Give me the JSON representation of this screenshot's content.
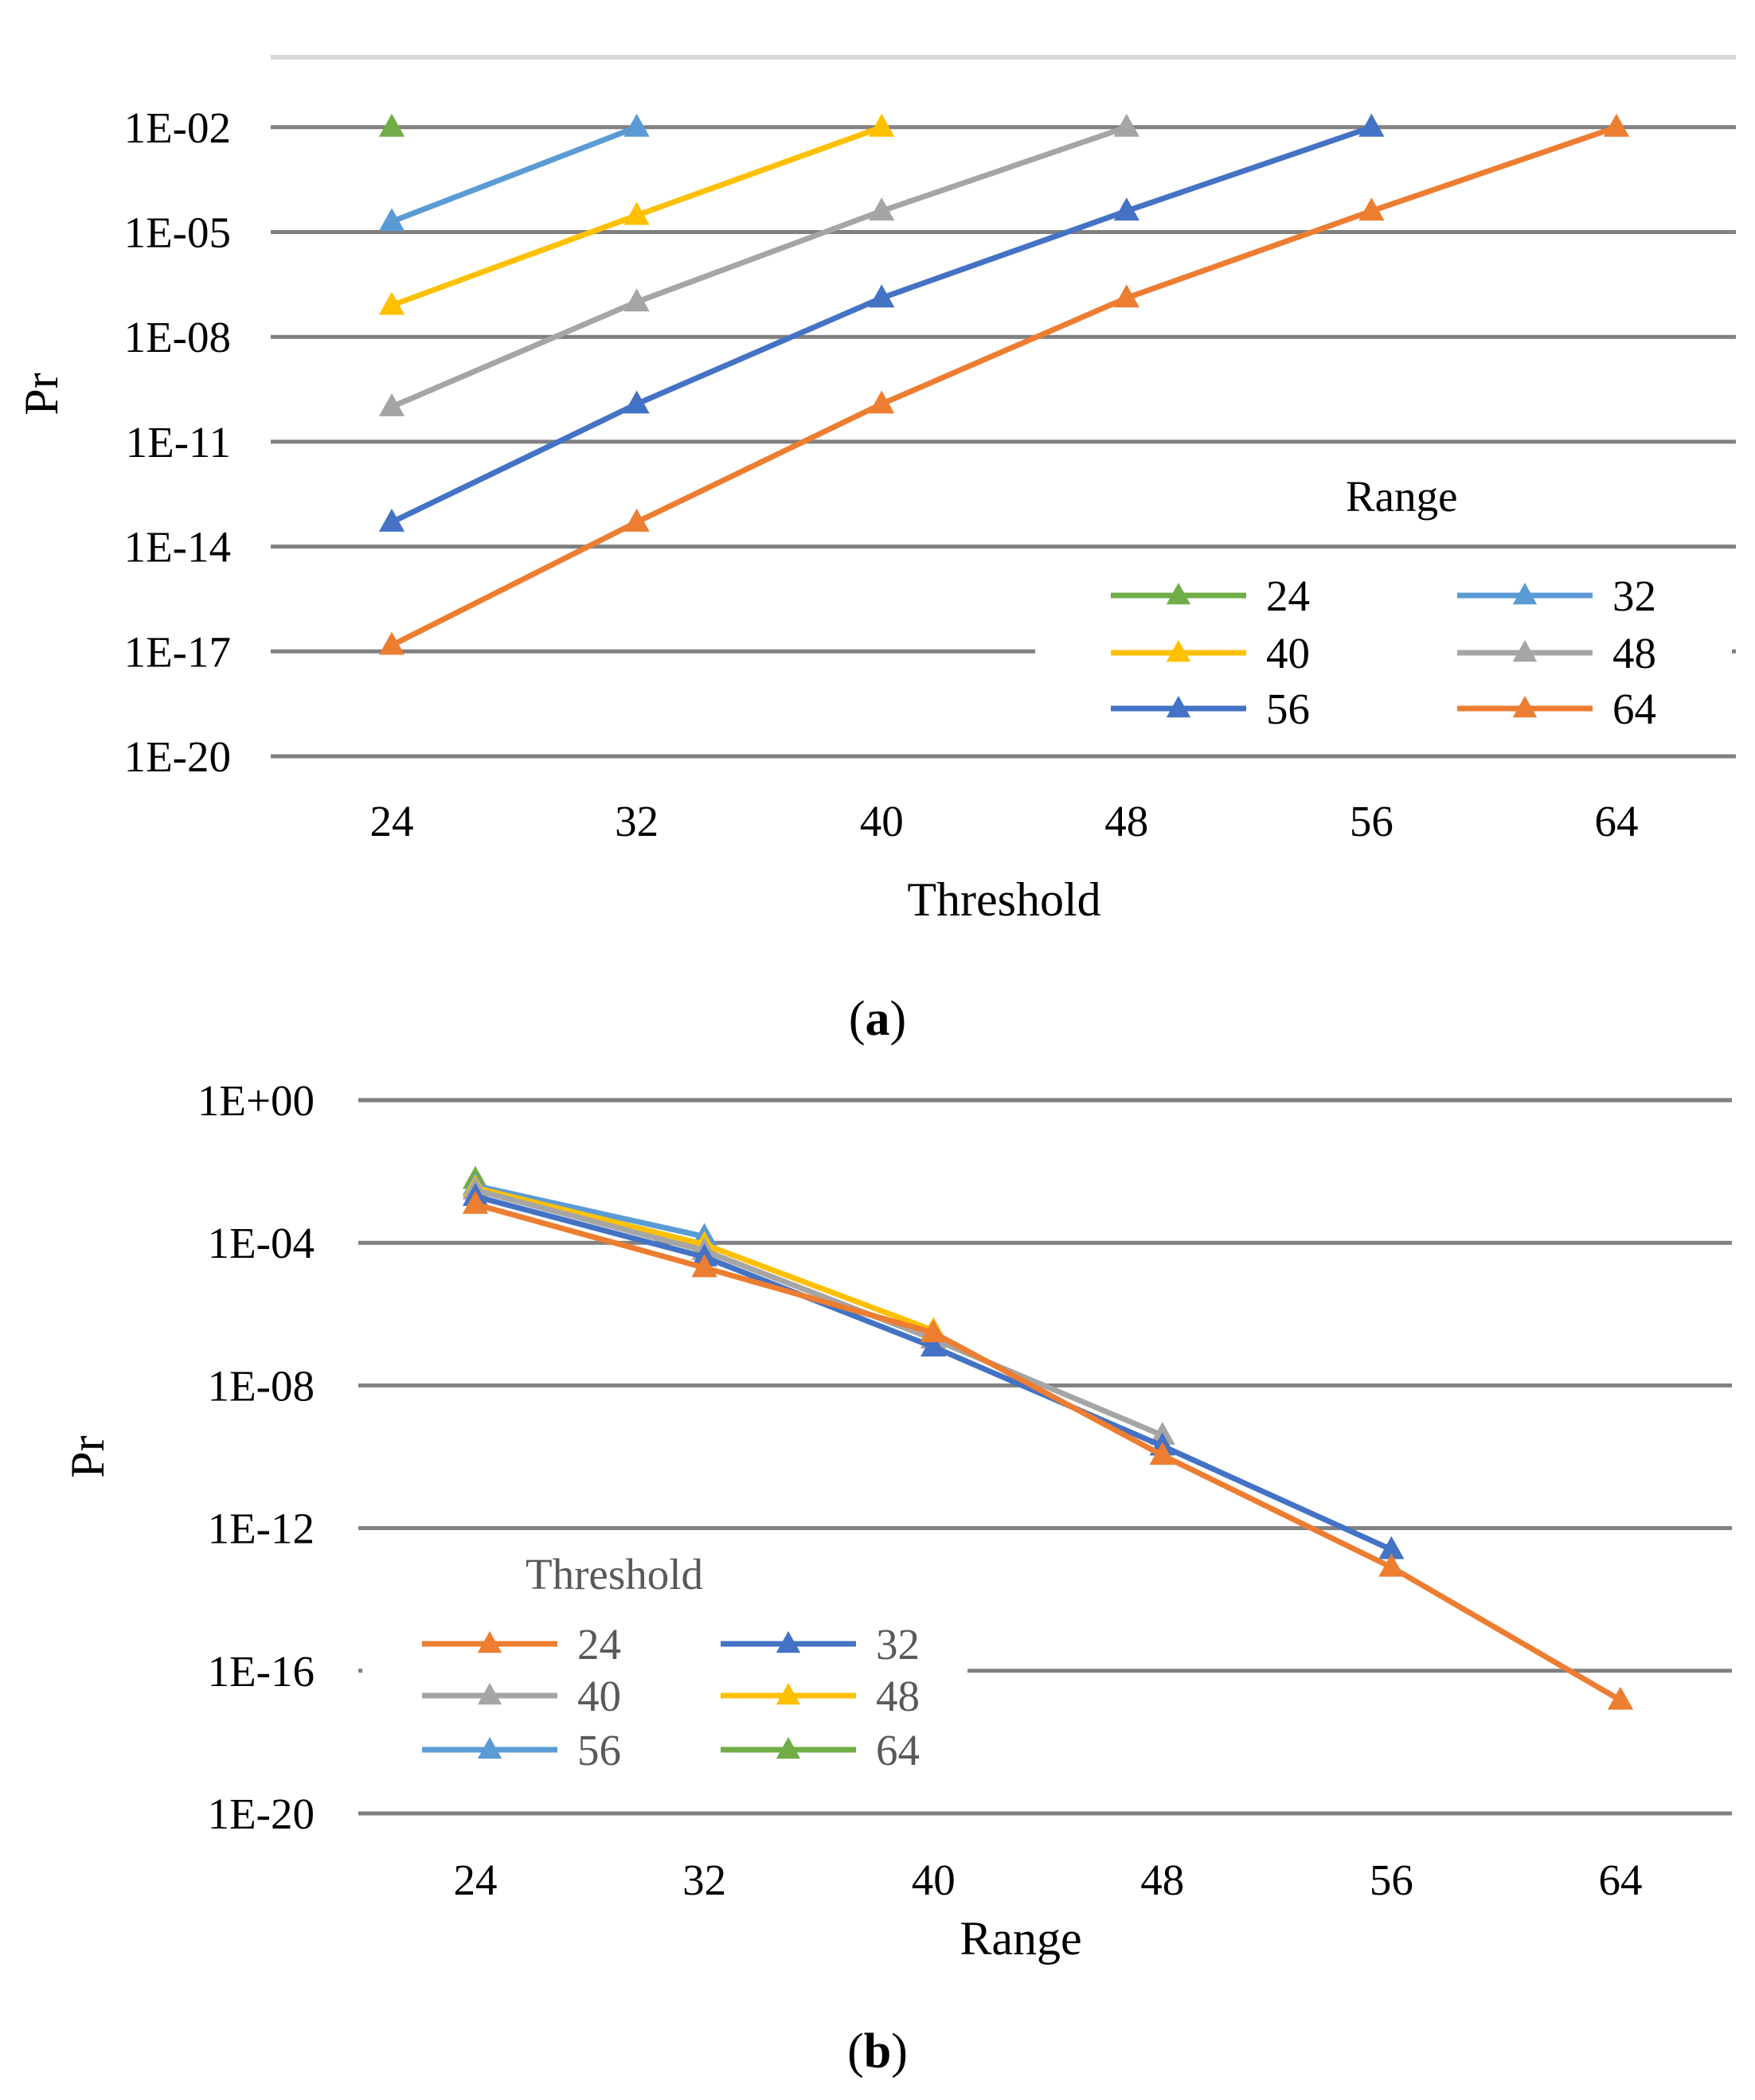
{
  "chart_data": [
    {
      "type": "line",
      "panel_label": "a",
      "xlabel": "Threshold",
      "ylabel": "Pr",
      "categories": [
        "24",
        "32",
        "40",
        "48",
        "56",
        "64"
      ],
      "y_scale": "log",
      "ylim": [
        1e-20,
        1
      ],
      "y_ticks": [
        "1E-20",
        "1E-17",
        "1E-14",
        "1E-11",
        "1E-08",
        "1E-05",
        "1E-02"
      ],
      "grid": true,
      "legend": {
        "title": "Range",
        "placement": "bottom-right",
        "columns": 2
      },
      "marker": "triangle",
      "series": [
        {
          "name": "24",
          "color": "#70AD47",
          "values": [
            0.01,
            null,
            null,
            null,
            null,
            null
          ]
        },
        {
          "name": "32",
          "color": "#5B9BD5",
          "values": [
            2e-05,
            0.01,
            null,
            null,
            null,
            null
          ]
        },
        {
          "name": "40",
          "color": "#FFC000",
          "values": [
            8e-08,
            3e-05,
            0.01,
            null,
            null,
            null
          ]
        },
        {
          "name": "48",
          "color": "#A5A5A5",
          "values": [
            1e-10,
            1e-07,
            4e-05,
            0.01,
            null,
            null
          ]
        },
        {
          "name": "56",
          "color": "#4472C4",
          "values": [
            5e-14,
            1.2e-10,
            1.3e-07,
            4e-05,
            0.01,
            null
          ]
        },
        {
          "name": "64",
          "color": "#ED7D31",
          "values": [
            1.5e-17,
            5e-14,
            1.2e-10,
            1.3e-07,
            4e-05,
            0.01
          ]
        }
      ]
    },
    {
      "type": "line",
      "panel_label": "b",
      "xlabel": "Range",
      "ylabel": "Pr",
      "categories": [
        "24",
        "32",
        "40",
        "48",
        "56",
        "64"
      ],
      "y_scale": "log",
      "ylim": [
        1e-20,
        1
      ],
      "y_ticks": [
        "1E-20",
        "1E-16",
        "1E-12",
        "1E-08",
        "1E-04",
        "1E+00"
      ],
      "grid": true,
      "legend": {
        "title": "Threshold",
        "placement": "bottom-left",
        "columns": 2
      },
      "marker": "triangle",
      "series": [
        {
          "name": "24",
          "color": "#ED7D31",
          "values": [
            0.0012,
            2e-05,
            3e-07,
            1.1e-10,
            8e-14,
            1.5e-17
          ]
        },
        {
          "name": "32",
          "color": "#4472C4",
          "values": [
            0.002,
            4e-05,
            1.2e-07,
            2e-10,
            2.5e-13,
            null
          ]
        },
        {
          "name": "40",
          "color": "#A5A5A5",
          "values": [
            0.003,
            6e-05,
            2e-07,
            4e-10,
            null,
            null
          ]
        },
        {
          "name": "48",
          "color": "#FFC000",
          "values": [
            0.0035,
            9e-05,
            3.5e-07,
            null,
            null,
            null
          ]
        },
        {
          "name": "56",
          "color": "#5B9BD5",
          "values": [
            0.004,
            0.00015,
            null,
            null,
            null,
            null
          ]
        },
        {
          "name": "64",
          "color": "#70AD47",
          "values": [
            0.006,
            null,
            null,
            null,
            null,
            null
          ]
        }
      ]
    }
  ]
}
